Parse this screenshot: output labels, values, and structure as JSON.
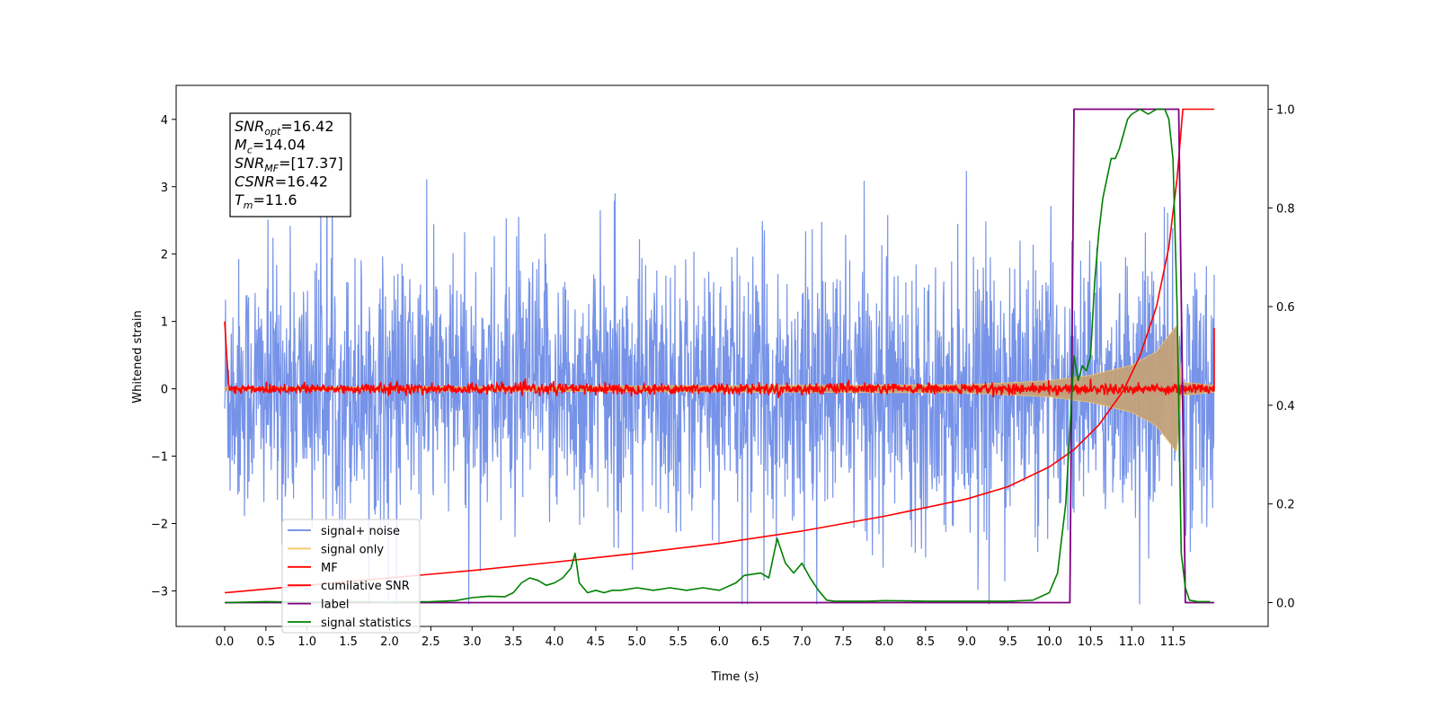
{
  "chart_data": {
    "type": "line",
    "xlabel": "Time (s)",
    "ylabel": "Whitened strain",
    "xlim": [
      -0.6,
      12.6
    ],
    "ylim": [
      -3.55,
      4.5
    ],
    "ylim_right": [
      -0.05,
      1.04
    ],
    "xticks": [
      "0.0",
      "0.5",
      "1.0",
      "1.5",
      "2.0",
      "2.5",
      "3.0",
      "3.5",
      "4.0",
      "4.5",
      "5.0",
      "5.5",
      "6.0",
      "6.5",
      "7.0",
      "7.5",
      "8.0",
      "8.5",
      "9.0",
      "9.5",
      "10.0",
      "10.5",
      "11.0",
      "11.5"
    ],
    "yticks_left": [
      "−3",
      "−2",
      "−1",
      "0",
      "1",
      "2",
      "3",
      "4"
    ],
    "yticks_right": [
      "0.0",
      "0.2",
      "0.4",
      "0.6",
      "0.8",
      "1.0"
    ],
    "colors": {
      "signal_noise": "#6a8ae6",
      "signal_only": "#f5c668",
      "signal_only_fill": "#c4a27a",
      "mf": "#ff0000",
      "cumulative_snr": "#ff0000",
      "label": "#800080",
      "signal_statistics": "#008000"
    },
    "annotation": [
      {
        "sym": "SNR",
        "sub": "opt",
        "rest": "=16.42"
      },
      {
        "sym": "M",
        "sub": "c",
        "rest": "=14.04"
      },
      {
        "sym": "SNR",
        "sub": "MF",
        "rest": "=[17.37]"
      },
      {
        "sym": "CSNR",
        "sub": "",
        "rest": "=16.42"
      },
      {
        "sym": "T",
        "sub": "m",
        "rest": "=11.6"
      }
    ],
    "legend": [
      "signal+ noise",
      "signal only",
      "MF",
      "cumilative SNR",
      "label",
      "signal statistics"
    ],
    "series": [
      {
        "name": "signal+ noise",
        "axis": "left",
        "description_range": [
          -3.2,
          3.6
        ],
        "x_range": [
          0,
          12.0
        ]
      },
      {
        "name": "signal only",
        "axis": "left",
        "envelope": {
          "x": [
            0,
            9.0,
            10.0,
            10.5,
            11.0,
            11.3,
            11.55,
            11.6,
            12.0
          ],
          "amp": [
            0.02,
            0.06,
            0.12,
            0.2,
            0.35,
            0.55,
            0.95,
            0.1,
            0.05
          ]
        }
      },
      {
        "name": "MF",
        "axis": "left",
        "level": 0.0,
        "start_spike": 1.0,
        "end_value": 0.9
      },
      {
        "name": "cumilative SNR",
        "axis": "right",
        "x": [
          0,
          1,
          2,
          3,
          4,
          5,
          6,
          7,
          8,
          9,
          9.5,
          10.0,
          10.3,
          10.6,
          10.9,
          11.1,
          11.3,
          11.45,
          11.55,
          11.62,
          11.7,
          12.0
        ],
        "values": [
          0.02,
          0.035,
          0.05,
          0.065,
          0.082,
          0.1,
          0.12,
          0.145,
          0.175,
          0.21,
          0.235,
          0.275,
          0.31,
          0.36,
          0.43,
          0.5,
          0.6,
          0.72,
          0.86,
          1.0,
          1.0,
          1.0
        ]
      },
      {
        "name": "label",
        "axis": "right",
        "x": [
          0,
          10.25,
          10.3,
          11.57,
          11.65,
          12.0
        ],
        "values": [
          0,
          0,
          1,
          1,
          0,
          0
        ]
      },
      {
        "name": "signal statistics",
        "axis": "right",
        "x": [
          0,
          0.5,
          1.0,
          1.5,
          2.0,
          2.5,
          2.8,
          3.0,
          3.2,
          3.4,
          3.5,
          3.6,
          3.7,
          3.8,
          3.9,
          4.0,
          4.1,
          4.2,
          4.25,
          4.3,
          4.4,
          4.5,
          4.6,
          4.7,
          4.8,
          5.0,
          5.2,
          5.4,
          5.6,
          5.8,
          6.0,
          6.2,
          6.3,
          6.5,
          6.6,
          6.7,
          6.8,
          6.9,
          7.0,
          7.1,
          7.2,
          7.3,
          7.4,
          7.6,
          7.8,
          8.0,
          8.5,
          9.0,
          9.5,
          9.8,
          10.0,
          10.1,
          10.2,
          10.25,
          10.3,
          10.35,
          10.4,
          10.45,
          10.5,
          10.55,
          10.6,
          10.65,
          10.7,
          10.75,
          10.8,
          10.85,
          10.9,
          10.95,
          11.0,
          11.1,
          11.2,
          11.3,
          11.4,
          11.45,
          11.5,
          11.55,
          11.6,
          11.65,
          11.7,
          11.8,
          11.9,
          11.95
        ],
        "values": [
          0,
          0.002,
          0.001,
          0.002,
          0.001,
          0.002,
          0.004,
          0.01,
          0.013,
          0.012,
          0.02,
          0.04,
          0.05,
          0.045,
          0.035,
          0.04,
          0.05,
          0.07,
          0.1,
          0.04,
          0.02,
          0.025,
          0.02,
          0.025,
          0.025,
          0.03,
          0.025,
          0.03,
          0.025,
          0.03,
          0.025,
          0.04,
          0.055,
          0.06,
          0.05,
          0.13,
          0.08,
          0.06,
          0.08,
          0.05,
          0.025,
          0.005,
          0.003,
          0.003,
          0.003,
          0.004,
          0.003,
          0.003,
          0.003,
          0.005,
          0.02,
          0.06,
          0.2,
          0.35,
          0.5,
          0.45,
          0.48,
          0.47,
          0.5,
          0.65,
          0.75,
          0.82,
          0.86,
          0.9,
          0.9,
          0.92,
          0.95,
          0.98,
          0.99,
          1.0,
          0.99,
          1.0,
          1.0,
          0.98,
          0.9,
          0.6,
          0.1,
          0.03,
          0.005,
          0.002,
          0.002,
          0.002
        ]
      }
    ]
  }
}
